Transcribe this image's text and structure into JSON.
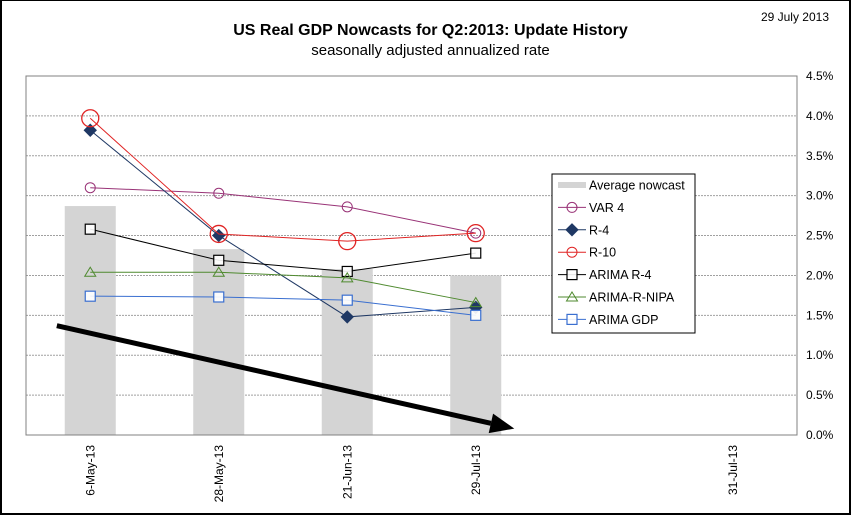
{
  "date_stamp": "29 July 2013",
  "chart_data": {
    "type": "bar+line",
    "title": "US Real GDP Nowcasts for Q2:2013: Update History",
    "subtitle": "seasonally adjusted annualized rate",
    "xlabel": "",
    "ylabel": "",
    "categories": [
      "6-May-13",
      "28-May-13",
      "21-Jun-13",
      "29-Jul-13",
      "",
      "31-Jul-13"
    ],
    "ylim": [
      0,
      4.5
    ],
    "yticks": [
      0.0,
      0.5,
      1.0,
      1.5,
      2.0,
      2.5,
      3.0,
      3.5,
      4.0,
      4.5
    ],
    "ytick_labels": [
      "0.0%",
      "0.5%",
      "1.0%",
      "1.5%",
      "2.0%",
      "2.5%",
      "3.0%",
      "3.5%",
      "4.0%",
      "4.5%"
    ],
    "y_axis_side": "right",
    "grid": true,
    "legend_position": "center-right",
    "bars": {
      "name": "Average nowcast",
      "color": "#d4d4d4",
      "values": [
        2.87,
        2.33,
        2.08,
        2.0,
        null,
        null
      ]
    },
    "series": [
      {
        "name": "VAR 4",
        "color": "#993377",
        "marker": "circle-open",
        "values": [
          3.1,
          3.03,
          2.86,
          2.53,
          null,
          null
        ]
      },
      {
        "name": "R-4",
        "color": "#1f3864",
        "marker": "diamond-filled",
        "values": [
          3.82,
          2.5,
          1.48,
          1.6,
          null,
          null
        ]
      },
      {
        "name": "R-10",
        "color": "#e02424",
        "marker": "circle-open-large",
        "values": [
          3.97,
          2.52,
          2.43,
          2.53,
          null,
          null
        ]
      },
      {
        "name": "ARIMA R-4",
        "color": "#000000",
        "marker": "square-open",
        "values": [
          2.58,
          2.19,
          2.05,
          2.28,
          null,
          null
        ]
      },
      {
        "name": "ARIMA-R-NIPA",
        "color": "#4f8a2f",
        "marker": "triangle-open",
        "values": [
          2.04,
          2.04,
          1.97,
          1.66,
          null,
          null
        ]
      },
      {
        "name": "ARIMA GDP",
        "color": "#3a6fd0",
        "marker": "square-open",
        "values": [
          1.74,
          1.73,
          1.69,
          1.5,
          null,
          null
        ]
      }
    ],
    "annotations": [
      {
        "type": "arrow",
        "description": "downward trend arrow",
        "from": {
          "category_index": -0.26,
          "value": 1.37
        },
        "to": {
          "category_index": 3.3,
          "value": 0.08
        }
      }
    ]
  }
}
